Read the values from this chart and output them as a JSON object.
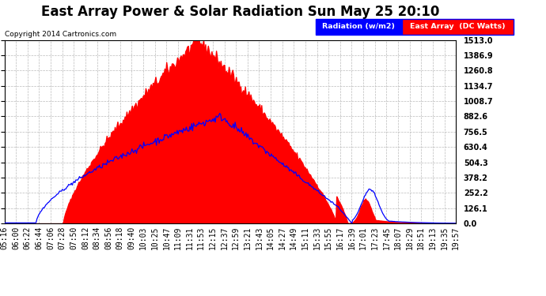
{
  "title": "East Array Power & Solar Radiation Sun May 25 20:10",
  "copyright": "Copyright 2014 Cartronics.com",
  "ylabel_right_ticks": [
    0.0,
    126.1,
    252.2,
    378.2,
    504.3,
    630.4,
    756.5,
    882.6,
    1008.7,
    1134.7,
    1260.8,
    1386.9,
    1513.0
  ],
  "ymax": 1513.0,
  "ymin": 0.0,
  "legend_labels": [
    "Radiation (w/m2)",
    "East Array  (DC Watts)"
  ],
  "background_color": "#ffffff",
  "plot_bg_color": "#ffffff",
  "grid_color": "#bbbbbb",
  "title_fontsize": 12,
  "tick_fontsize": 7,
  "x_labels": [
    "05:16",
    "06:00",
    "06:22",
    "06:44",
    "07:06",
    "07:28",
    "07:50",
    "08:12",
    "08:34",
    "08:56",
    "09:18",
    "09:40",
    "10:03",
    "10:25",
    "10:47",
    "11:09",
    "11:31",
    "11:53",
    "12:15",
    "12:37",
    "12:59",
    "13:21",
    "13:43",
    "14:05",
    "14:27",
    "14:49",
    "15:11",
    "15:33",
    "15:55",
    "16:17",
    "16:39",
    "17:01",
    "17:23",
    "17:45",
    "18:07",
    "18:29",
    "18:51",
    "19:13",
    "19:35",
    "19:57"
  ]
}
